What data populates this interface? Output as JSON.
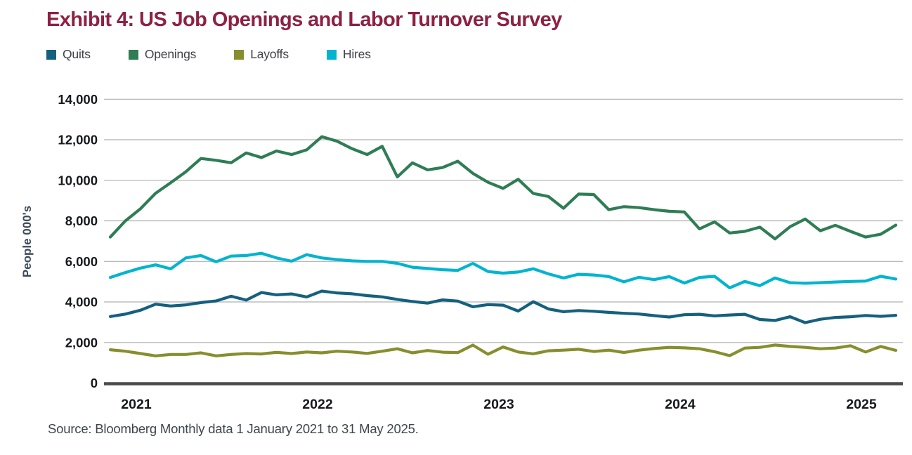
{
  "header": {
    "title": "Exhibit 4: US Job Openings and Labor Turnover Survey"
  },
  "legend": {
    "items": [
      {
        "label": "Quits",
        "color": "#15607e"
      },
      {
        "label": "Openings",
        "color": "#2e7d55"
      },
      {
        "label": "Layoffs",
        "color": "#878e2d"
      },
      {
        "label": "Hires",
        "color": "#00b4cf"
      }
    ]
  },
  "chart_data": {
    "type": "line",
    "title": "Exhibit 4: US Job Openings and Labor Turnover Survey",
    "xlabel": "",
    "ylabel": "People 000's",
    "ylim": [
      0,
      14000
    ],
    "ytick_values": [
      0,
      2000,
      4000,
      6000,
      8000,
      10000,
      12000,
      14000
    ],
    "ytick_labels": [
      "0",
      "2,000",
      "4,000",
      "6,000",
      "8,000",
      "10,000",
      "12,000",
      "14,000"
    ],
    "xtick_labels": [
      "2021",
      "2022",
      "2023",
      "2024",
      "2025"
    ],
    "frequency": "monthly",
    "x_start": "2021-01",
    "x_end": "2025-05",
    "grid": "horizontal",
    "legend_position": "top-left",
    "x_months": [
      "2021-01",
      "2021-02",
      "2021-03",
      "2021-04",
      "2021-05",
      "2021-06",
      "2021-07",
      "2021-08",
      "2021-09",
      "2021-10",
      "2021-11",
      "2021-12",
      "2022-01",
      "2022-02",
      "2022-03",
      "2022-04",
      "2022-05",
      "2022-06",
      "2022-07",
      "2022-08",
      "2022-09",
      "2022-10",
      "2022-11",
      "2022-12",
      "2023-01",
      "2023-02",
      "2023-03",
      "2023-04",
      "2023-05",
      "2023-06",
      "2023-07",
      "2023-08",
      "2023-09",
      "2023-10",
      "2023-11",
      "2023-12",
      "2024-01",
      "2024-02",
      "2024-03",
      "2024-04",
      "2024-05",
      "2024-06",
      "2024-07",
      "2024-08",
      "2024-09",
      "2024-10",
      "2024-11",
      "2024-12",
      "2025-01",
      "2025-02",
      "2025-03",
      "2025-04",
      "2025-05"
    ],
    "series": [
      {
        "name": "Openings",
        "color": "#2e7d55",
        "values": [
          7200,
          8000,
          8600,
          9360,
          9880,
          10420,
          11075,
          10985,
          10865,
          11350,
          11120,
          11445,
          11270,
          11500,
          12150,
          11930,
          11560,
          11270,
          11675,
          10165,
          10860,
          10515,
          10630,
          10940,
          10340,
          9900,
          9600,
          10050,
          9350,
          9200,
          8620,
          9320,
          9300,
          8550,
          8700,
          8650,
          8550,
          8470,
          8435,
          7600,
          7950,
          7400,
          7480,
          7690,
          7110,
          7710,
          8090,
          7510,
          7780,
          7480,
          7200,
          7340,
          7790
        ]
      },
      {
        "name": "Hires",
        "color": "#00b4cf",
        "values": [
          5210,
          5450,
          5670,
          5830,
          5630,
          6170,
          6290,
          5980,
          6260,
          6290,
          6400,
          6170,
          6010,
          6330,
          6170,
          6090,
          6025,
          6000,
          6000,
          5905,
          5710,
          5650,
          5590,
          5555,
          5900,
          5500,
          5420,
          5475,
          5635,
          5385,
          5180,
          5365,
          5330,
          5250,
          4990,
          5215,
          5100,
          5250,
          4930,
          5210,
          5265,
          4695,
          5010,
          4805,
          5180,
          4950,
          4920,
          4950,
          4985,
          5010,
          5030,
          5265,
          5130
        ]
      },
      {
        "name": "Quits",
        "color": "#15607e",
        "values": [
          3280,
          3400,
          3590,
          3890,
          3800,
          3855,
          3970,
          4050,
          4280,
          4090,
          4465,
          4350,
          4395,
          4245,
          4535,
          4445,
          4400,
          4310,
          4250,
          4125,
          4020,
          3940,
          4100,
          4040,
          3760,
          3870,
          3840,
          3550,
          4010,
          3655,
          3520,
          3575,
          3540,
          3485,
          3440,
          3405,
          3325,
          3255,
          3370,
          3390,
          3310,
          3355,
          3390,
          3135,
          3085,
          3270,
          2980,
          3145,
          3235,
          3270,
          3330,
          3290,
          3340
        ]
      },
      {
        "name": "Layoffs",
        "color": "#878e2d",
        "values": [
          1640,
          1570,
          1455,
          1340,
          1410,
          1410,
          1490,
          1340,
          1410,
          1455,
          1435,
          1515,
          1455,
          1530,
          1490,
          1570,
          1530,
          1460,
          1570,
          1690,
          1490,
          1605,
          1520,
          1500,
          1870,
          1420,
          1780,
          1530,
          1440,
          1590,
          1620,
          1665,
          1555,
          1620,
          1505,
          1620,
          1700,
          1760,
          1735,
          1690,
          1545,
          1350,
          1725,
          1760,
          1875,
          1805,
          1760,
          1690,
          1725,
          1840,
          1530,
          1805,
          1610
        ]
      }
    ],
    "style": {
      "gridline_color": "#b0b0b0",
      "baseline_color": "#4c4c4c",
      "tick_label_color": "#17191d",
      "axis_title_color": "#3d4b59",
      "title_color": "#8e2143"
    }
  },
  "footer": {
    "source": "Source: Bloomberg Monthly data 1 January 2021 to 31 May 2025."
  }
}
